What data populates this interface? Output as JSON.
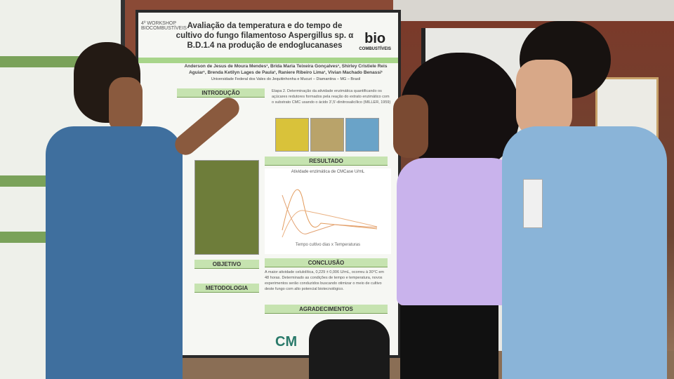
{
  "poster": {
    "event_logo": "4º WORKSHOP BIOCOMBUSTÍVEIS",
    "brand_logo": "bio",
    "brand_sub": "COMBUSTÍVEIS",
    "title": "Avaliação da temperatura e do tempo de cultivo do fungo filamentoso Aspergillus sp. α B.D.1.4 na produção de endoglucanases",
    "authors": "Anderson de Jesus de Moura Mendes¹, Brida Maria Teixeira Gonçalves¹, Shirley Cristiele Reis Aguiar¹, Brenda Ketilyn Lages de Paula¹, Raniere Ribeiro Lima¹, Vivian Machado Benassi¹",
    "affiliation": "Universidade Federal dos Vales do Jequitinhonha e Mucuri – Diamantina – MG – Brasil",
    "sections": {
      "intro": "INTRODUÇÃO",
      "objective": "OBJETIVO",
      "method": "METODOLOGIA",
      "result": "RESULTADO",
      "conclusion": "CONCLUSÃO",
      "thanks": "AGRADECIMENTOS"
    },
    "etapa2": "Etapa 2. Determinação da atividade enzimática quantificando os açúcares redutores formados pela reação do extrato enzimático com o substrato CMC usando o ácido 3',5'-dinitrosalicílico (MILLER, 1959)",
    "chart_title": "Atividade enzimática de CMCase U/mL",
    "chart_xlabel": "Tempo cultivo dias x Temperaturas",
    "conclusion_text": "A maior atividade celulolítica, 0,229 ± 0,006 U/mL, ocorreu à 30°C em 48 horas. Determinado as condições de tempo e temperatura, novos experimentos serão conduzidos buscando otimizar o meio de cultivo deste fungo com alto potencial biotecnológico.",
    "sponsor": "CM"
  },
  "colors": {
    "wall": "#8a4a36",
    "poster_green": "#c6e3b0",
    "shirt_lilac": "#c9b3ec",
    "shirt_blue": "#8ab4d8",
    "shirt_denim": "#3f6f9e"
  }
}
